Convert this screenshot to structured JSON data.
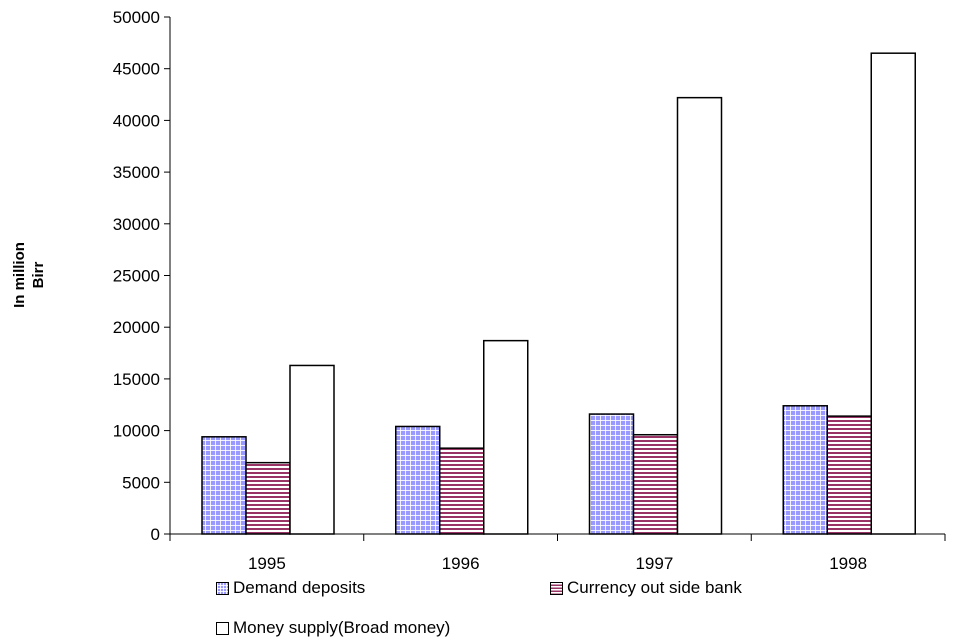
{
  "chart_data": {
    "type": "bar",
    "categories": [
      "1995",
      "1996",
      "1997",
      "1998"
    ],
    "series": [
      {
        "name": "Demand deposits",
        "values": [
          9400,
          10400,
          11600,
          12400
        ],
        "color": "#9999ff",
        "pattern": "grid"
      },
      {
        "name": "Currency out side bank",
        "values": [
          6900,
          8300,
          9600,
          11400
        ],
        "color": "#993366",
        "pattern": "horizontal-stripes"
      },
      {
        "name": "Money supply(Broad money)",
        "values": [
          16300,
          18700,
          42200,
          46500
        ],
        "color": "#ffffff",
        "pattern": "none"
      }
    ],
    "title": "",
    "xlabel": "",
    "ylabel_lines": [
      "In million",
      "Birr"
    ],
    "ylim": [
      0,
      50000
    ],
    "yticks": [
      "0",
      "5000",
      "10000",
      "15000",
      "20000",
      "25000",
      "30000",
      "35000",
      "40000",
      "45000",
      "50000"
    ],
    "grid": false,
    "legend_position": "bottom"
  }
}
